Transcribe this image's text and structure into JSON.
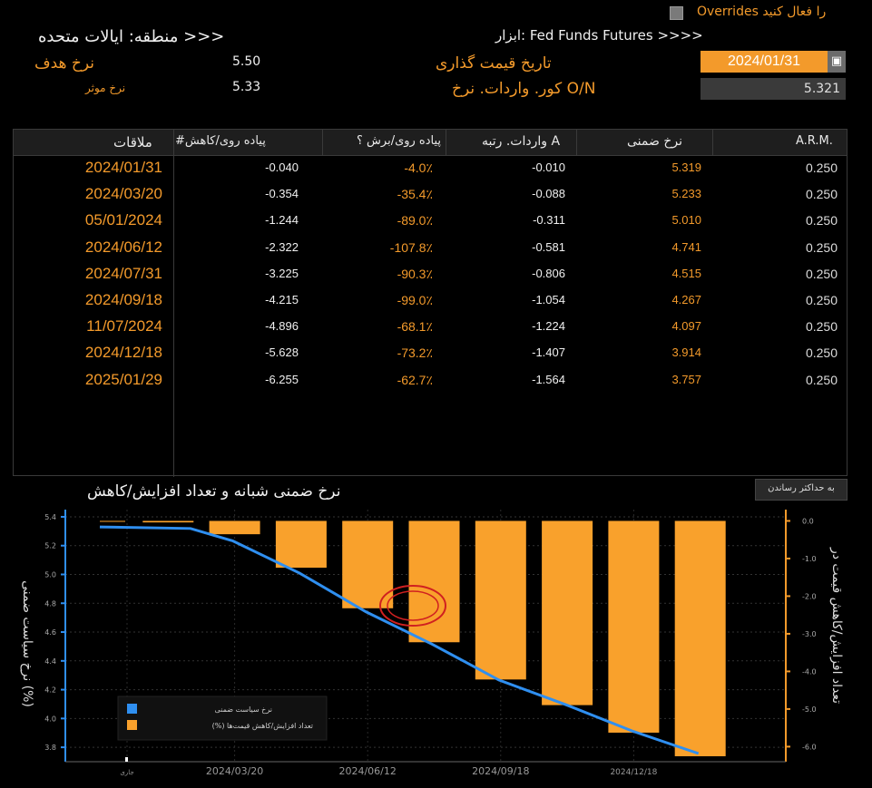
{
  "header": {
    "overrides_label": "Overrides را فعال کنید",
    "region_label": "منطقه: ایالات متحده >>>",
    "instrument_label": "ابزار: Fed Funds Futures >>>>",
    "target_rate_label": "نرخ هدف",
    "target_rate_value": "5.50",
    "effective_rate_label": "نرخ موثر",
    "effective_rate_value": "5.33",
    "pricing_date_label": "تاریخ قیمت گذاری",
    "pricing_date_value": "2024/01/31",
    "calendar_icon": "calendar-icon",
    "on_rate_label": "کور. واردات. نرخ O/N",
    "on_rate_value": "5.321"
  },
  "table": {
    "columns": [
      "ملاقات",
      "#پیاده روی/کاهش",
      "پیاده روی/برش ؟",
      "واردات. رتبه A",
      "نرخ ضمنی",
      "A.R.M."
    ],
    "rows": [
      {
        "date": "2024/01/31",
        "hikes": "-0.040",
        "pct": "-4.0٪",
        "imp_delta": "-0.010",
        "implied": "5.319",
        "arm": "0.250"
      },
      {
        "date": "2024/03/20",
        "hikes": "-0.354",
        "pct": "-35.4٪",
        "imp_delta": "-0.088",
        "implied": "5.233",
        "arm": "0.250"
      },
      {
        "date": "05/01/2024",
        "hikes": "-1.244",
        "pct": "-89.0٪",
        "imp_delta": "-0.311",
        "implied": "5.010",
        "arm": "0.250"
      },
      {
        "date": "2024/06/12",
        "hikes": "-2.322",
        "pct": "-107.8٪",
        "imp_delta": "-0.581",
        "implied": "4.741",
        "arm": "0.250"
      },
      {
        "date": "2024/07/31",
        "hikes": "-3.225",
        "pct": "-90.3٪",
        "imp_delta": "-0.806",
        "implied": "4.515",
        "arm": "0.250"
      },
      {
        "date": "2024/09/18",
        "hikes": "-4.215",
        "pct": "-99.0٪",
        "imp_delta": "-1.054",
        "implied": "4.267",
        "arm": "0.250"
      },
      {
        "date": "11/07/2024",
        "hikes": "-4.896",
        "pct": "-68.1٪",
        "imp_delta": "-1.224",
        "implied": "4.097",
        "arm": "0.250"
      },
      {
        "date": "2024/12/18",
        "hikes": "-5.628",
        "pct": "-73.2٪",
        "imp_delta": "-1.407",
        "implied": "3.914",
        "arm": "0.250"
      },
      {
        "date": "2025/01/29",
        "hikes": "-6.255",
        "pct": "-62.7٪",
        "imp_delta": "-1.564",
        "implied": "3.757",
        "arm": "0.250"
      }
    ]
  },
  "chart": {
    "title": "نرخ ضمنی شبانه و تعداد افزایش/کاهش",
    "maximize_label": "به حداکثر رساندن",
    "left_axis_label": "نرخ سیاست ضمنی (%)",
    "right_axis_label": "تعداد افزایش/کاهش قیمت در",
    "legend_implied": "نرخ سیاست ضمنی",
    "legend_hikes": "(%) تعداد افزایش/کاهش قیمت‌ها",
    "current_tick_label": "جاری",
    "line_color": "#2f8ff0",
    "bar_color": "#f9a12c"
  },
  "chart_data": {
    "type": "bar",
    "left_axis": {
      "ylim": [
        3.7,
        5.45
      ],
      "ticks": [
        "5.4",
        "5.2",
        "5.0",
        "4.8",
        "4.6",
        "4.4",
        "4.2",
        "4.0",
        "3.8"
      ]
    },
    "right_axis": {
      "ylim": [
        -6.4,
        0.3
      ],
      "ticks": [
        "0.0",
        "-1.0",
        "-2.0",
        "-3.0",
        "-4.0",
        "-5.0",
        "-6.0"
      ]
    },
    "x_ticks": [
      "جاری",
      "2024/03/20",
      "2024/06/12",
      "2024/09/18",
      "2024/12/18"
    ],
    "series": [
      {
        "name": "نرخ سیاست ضمنی",
        "kind": "line",
        "values": [
          5.33,
          5.319,
          5.233,
          5.01,
          4.741,
          4.515,
          4.267,
          4.097,
          3.914,
          3.757
        ]
      },
      {
        "name": "(%) تعداد افزایش/کاهش قیمت‌ها",
        "kind": "bar",
        "values": [
          0.0,
          -0.04,
          -0.354,
          -1.244,
          -2.322,
          -3.225,
          -4.215,
          -4.896,
          -5.628,
          -6.255
        ]
      }
    ]
  }
}
